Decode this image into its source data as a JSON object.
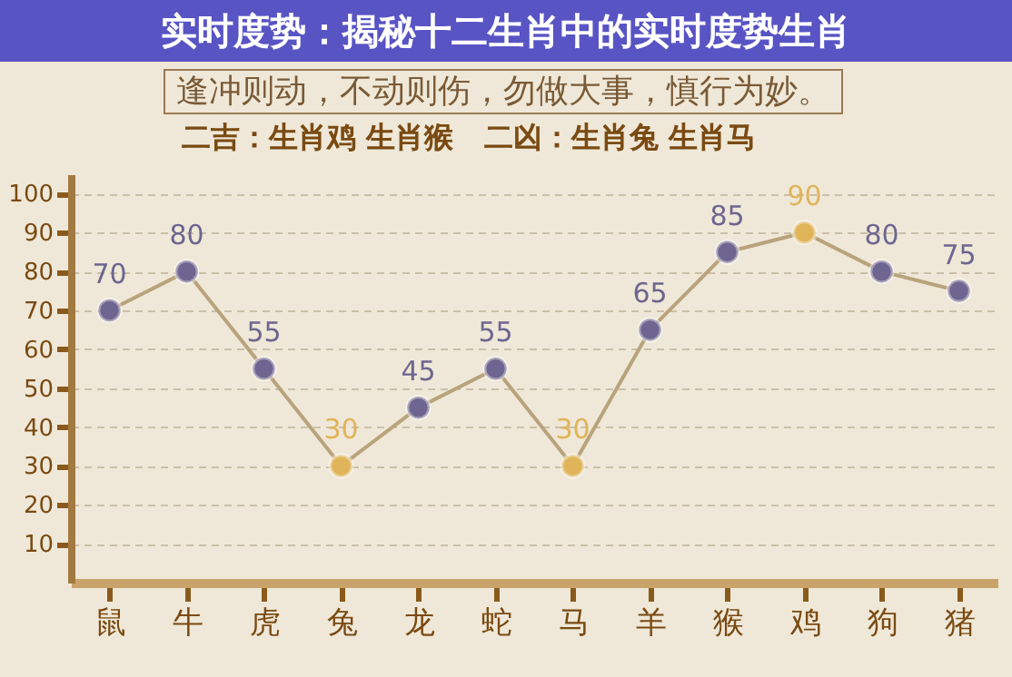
{
  "chart_data": {
    "type": "line",
    "title": "实时度势：揭秘十二生肖中的实时度势生肖",
    "subtitle": "逢冲则动，不动则伤，勿做大事，慎行为妙。",
    "annotations": [
      "二吉：生肖鸡 生肖猴   二凶：生肖兔 生肖马"
    ],
    "categories": [
      "鼠",
      "牛",
      "虎",
      "兔",
      "龙",
      "蛇",
      "马",
      "羊",
      "猴",
      "鸡",
      "狗",
      "猪"
    ],
    "series": [
      {
        "color": "#b9a37c",
        "values": [
          70,
          80,
          55,
          30,
          45,
          55,
          30,
          65,
          85,
          90,
          80,
          75
        ],
        "colors": [
          "#6e6590",
          "#6e6590",
          "#6e6590",
          "#e0b458",
          "#6e6590",
          "#6e6590",
          "#e0b458",
          "#6e6590",
          "#6e6590",
          "#e0b458",
          "#6e6590",
          "#6e6590"
        ]
      }
    ],
    "ylim": [
      0,
      105
    ],
    "yticks": [
      10,
      20,
      30,
      40,
      50,
      60,
      70,
      80,
      90,
      100
    ],
    "grid": "y",
    "marker": "circle",
    "data_labels": true
  }
}
